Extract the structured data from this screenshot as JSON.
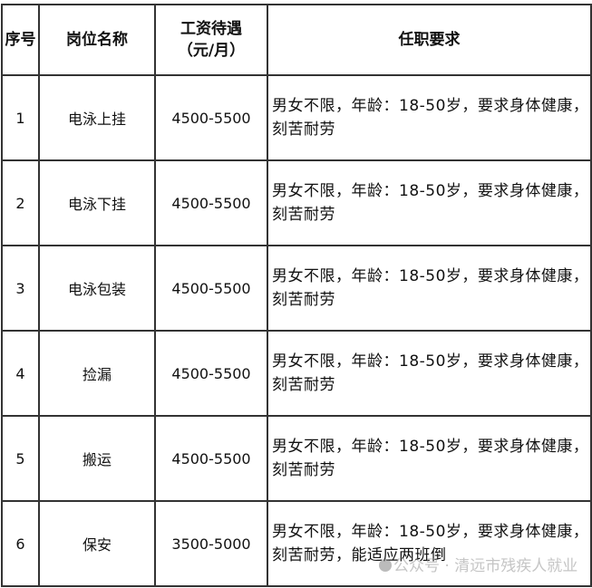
{
  "headers": [
    "序号",
    "岗位名称",
    "工资待遇\n（元/月）",
    "任职要求"
  ],
  "header_salary_line1": "工资待遇",
  "header_salary_line2": "（元/月）",
  "rows": [
    {
      "no": "1",
      "position": "电泳上挂",
      "salary": "4500-5500",
      "requirement": "男女不限，年龄：18-50岁，要求身体健康，刻苦耐劳"
    },
    {
      "no": "2",
      "position": "电泳下挂",
      "salary": "4500-5500",
      "requirement": "男女不限，年龄：18-50岁，要求身体健康，刻苦耐劳"
    },
    {
      "no": "3",
      "position": "电泳包装",
      "salary": "4500-5500",
      "requirement": "男女不限，年龄：18-50岁，要求身体健康，刻苦耐劳"
    },
    {
      "no": "4",
      "position": "捡漏",
      "salary": "4500-5500",
      "requirement": "男女不限，年龄：18-50岁，要求身体健康，刻苦耐劳"
    },
    {
      "no": "5",
      "position": "搬运",
      "salary": "4500-5500",
      "requirement": "男女不限，年龄：18-50岁，要求身体健康，刻苦耐劳"
    },
    {
      "no": "6",
      "position": "保安",
      "salary": "3500-5000",
      "requirement": "男女不限，年龄：18-50岁，要求身体健康，刻苦耐劳，能适应两班倒"
    }
  ],
  "watermark": "公众号 · 清远市残疾人就业"
}
